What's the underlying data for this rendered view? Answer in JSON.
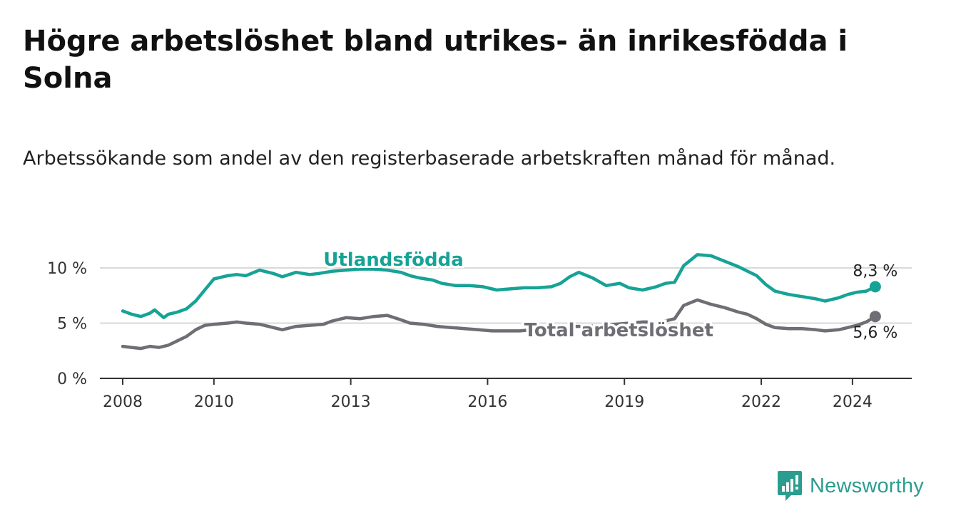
{
  "title": "Högre arbetslöshet bland utrikes- än inrikesfödda i Solna",
  "subtitle": "Arbetssökande som andel av den registerbaserade arbetskraften månad för månad.",
  "brand": {
    "name": "Newsworthy",
    "icon": "newsworthy-logo-icon"
  },
  "colors": {
    "foreign": "#16a396",
    "total": "#6f6e74",
    "grid": "#d9d9d9",
    "axis": "#333333"
  },
  "chart_data": {
    "type": "line",
    "title": "Högre arbetslöshet bland utrikes- än inrikesfödda i Solna",
    "xlabel": "",
    "ylabel": "",
    "xlim": [
      2007.5,
      2025.3
    ],
    "ylim": [
      0,
      10
    ],
    "y_ticks": [
      0,
      5,
      10
    ],
    "y_tick_labels": [
      "0 %",
      "5 %",
      "10 %"
    ],
    "x_ticks": [
      2008,
      2010,
      2013,
      2016,
      2019,
      2022,
      2024
    ],
    "x_tick_labels": [
      "2008",
      "2010",
      "2013",
      "2016",
      "2019",
      "2022",
      "2024"
    ],
    "grid": true,
    "series": [
      {
        "name": "Utlandsfödda",
        "label": "Utlandsfödda",
        "end_label": "8,3 %",
        "x": [
          2008.0,
          2008.2,
          2008.4,
          2008.6,
          2008.7,
          2008.9,
          2009.0,
          2009.2,
          2009.4,
          2009.6,
          2009.8,
          2010.0,
          2010.3,
          2010.5,
          2010.7,
          2011.0,
          2011.3,
          2011.5,
          2011.8,
          2012.1,
          2012.3,
          2012.6,
          2012.9,
          2013.2,
          2013.5,
          2013.8,
          2014.1,
          2014.3,
          2014.5,
          2014.8,
          2015.0,
          2015.3,
          2015.6,
          2015.9,
          2016.2,
          2016.5,
          2016.8,
          2017.1,
          2017.4,
          2017.6,
          2017.8,
          2018.0,
          2018.3,
          2018.6,
          2018.9,
          2019.1,
          2019.4,
          2019.7,
          2019.9,
          2020.1,
          2020.3,
          2020.6,
          2020.9,
          2021.2,
          2021.5,
          2021.7,
          2021.9,
          2022.1,
          2022.3,
          2022.6,
          2022.9,
          2023.2,
          2023.4,
          2023.7,
          2023.9,
          2024.1,
          2024.3,
          2024.5
        ],
        "values": [
          6.1,
          5.8,
          5.6,
          5.9,
          6.2,
          5.5,
          5.8,
          6.0,
          6.3,
          7.0,
          8.0,
          9.0,
          9.3,
          9.4,
          9.3,
          9.8,
          9.5,
          9.2,
          9.6,
          9.4,
          9.5,
          9.7,
          9.8,
          9.9,
          9.9,
          9.8,
          9.6,
          9.3,
          9.1,
          8.9,
          8.6,
          8.4,
          8.4,
          8.3,
          8.0,
          8.1,
          8.2,
          8.2,
          8.3,
          8.6,
          9.2,
          9.6,
          9.1,
          8.4,
          8.6,
          8.2,
          8.0,
          8.3,
          8.6,
          8.7,
          10.2,
          11.2,
          11.1,
          10.6,
          10.1,
          9.7,
          9.3,
          8.5,
          7.9,
          7.6,
          7.4,
          7.2,
          7.0,
          7.3,
          7.6,
          7.8,
          7.9,
          8.3
        ]
      },
      {
        "name": "Total arbetslöshet",
        "label": "Total arbetslöshet",
        "end_label": "5,6 %",
        "x": [
          2008.0,
          2008.2,
          2008.4,
          2008.6,
          2008.8,
          2009.0,
          2009.2,
          2009.4,
          2009.6,
          2009.8,
          2010.0,
          2010.3,
          2010.5,
          2010.7,
          2011.0,
          2011.3,
          2011.5,
          2011.8,
          2012.1,
          2012.4,
          2012.6,
          2012.9,
          2013.2,
          2013.5,
          2013.8,
          2014.1,
          2014.3,
          2014.6,
          2014.9,
          2015.2,
          2015.5,
          2015.8,
          2016.1,
          2016.4,
          2016.7,
          2017.0,
          2017.3,
          2017.6,
          2017.9,
          2018.2,
          2018.5,
          2018.8,
          2019.1,
          2019.4,
          2019.7,
          2019.9,
          2020.1,
          2020.3,
          2020.6,
          2020.9,
          2021.2,
          2021.5,
          2021.7,
          2021.9,
          2022.1,
          2022.3,
          2022.6,
          2022.9,
          2023.2,
          2023.4,
          2023.7,
          2023.9,
          2024.1,
          2024.3,
          2024.5
        ],
        "values": [
          2.9,
          2.8,
          2.7,
          2.9,
          2.8,
          3.0,
          3.4,
          3.8,
          4.4,
          4.8,
          4.9,
          5.0,
          5.1,
          5.0,
          4.9,
          4.6,
          4.4,
          4.7,
          4.8,
          4.9,
          5.2,
          5.5,
          5.4,
          5.6,
          5.7,
          5.3,
          5.0,
          4.9,
          4.7,
          4.6,
          4.5,
          4.4,
          4.3,
          4.3,
          4.3,
          4.4,
          4.5,
          4.6,
          4.7,
          4.7,
          4.8,
          4.9,
          5.0,
          5.1,
          5.1,
          5.2,
          5.4,
          6.6,
          7.1,
          6.7,
          6.4,
          6.0,
          5.8,
          5.4,
          4.9,
          4.6,
          4.5,
          4.5,
          4.4,
          4.3,
          4.4,
          4.6,
          4.8,
          5.1,
          5.6
        ]
      }
    ]
  }
}
